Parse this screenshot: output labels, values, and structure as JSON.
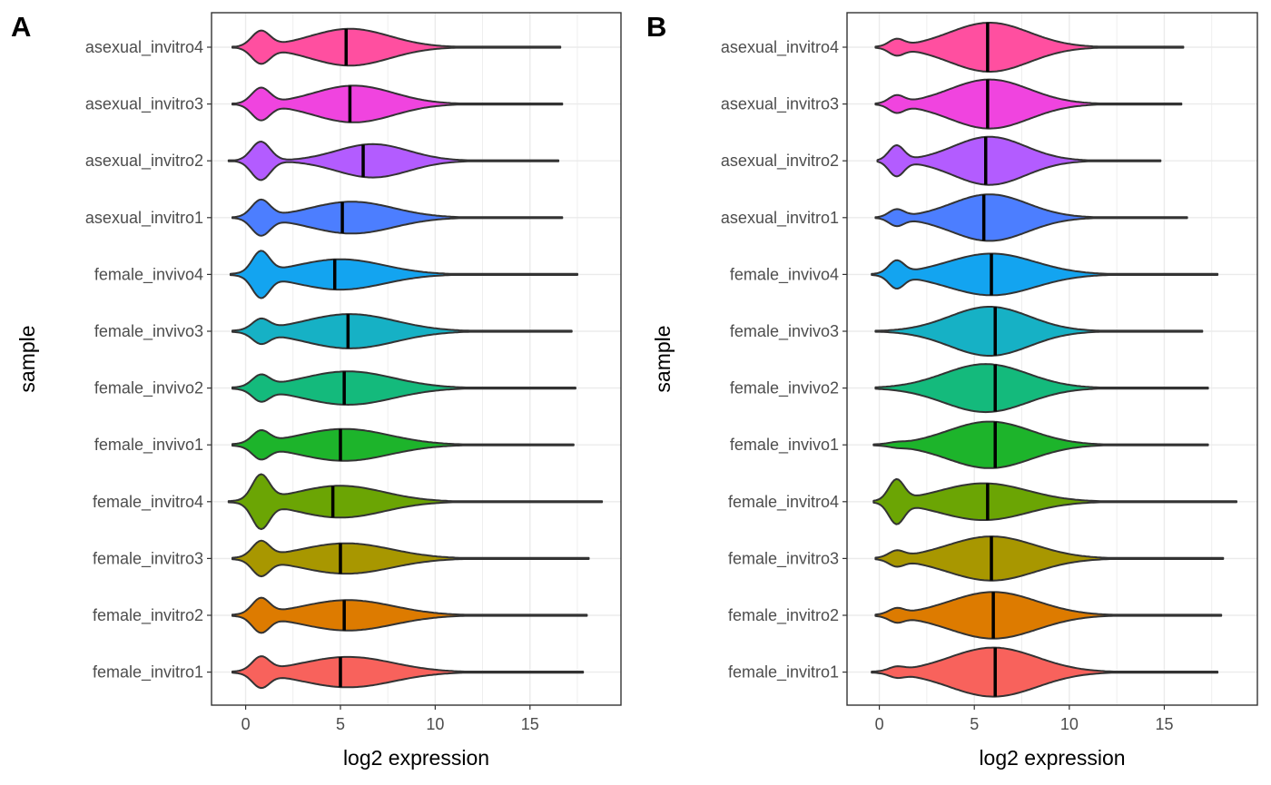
{
  "chart_data": [
    {
      "type": "violin",
      "panel_label": "A",
      "xlabel": "log2 expression",
      "ylabel": "sample",
      "xlim": [
        -1.8,
        19.8
      ],
      "xticks": [
        0,
        5,
        10,
        15
      ],
      "grid": true,
      "legend": "none",
      "categories": [
        "asexual_invitro4",
        "asexual_invitro3",
        "asexual_invitro2",
        "asexual_invitro1",
        "female_invivo4",
        "female_invivo3",
        "female_invivo2",
        "female_invivo1",
        "female_invitro4",
        "female_invitro3",
        "female_invitro2",
        "female_invitro1"
      ],
      "series": [
        {
          "category": "asexual_invitro4",
          "color": "#FF4FA0",
          "median": 5.3,
          "min": -0.7,
          "max": 16.6,
          "low_peak": {
            "x": 0.8,
            "w": 0.48,
            "h": 0.62
          },
          "main_peak": {
            "x": 5.5,
            "w": 2.1,
            "h": 0.75
          }
        },
        {
          "category": "asexual_invitro3",
          "color": "#F044DF",
          "median": 5.5,
          "min": -0.7,
          "max": 16.7,
          "low_peak": {
            "x": 0.8,
            "w": 0.48,
            "h": 0.62
          },
          "main_peak": {
            "x": 5.7,
            "w": 2.1,
            "h": 0.75
          }
        },
        {
          "category": "asexual_invitro2",
          "color": "#B35CFF",
          "median": 6.2,
          "min": -0.9,
          "max": 16.5,
          "low_peak": {
            "x": 0.8,
            "w": 0.5,
            "h": 0.78
          },
          "main_peak": {
            "x": 6.7,
            "w": 1.9,
            "h": 0.68
          }
        },
        {
          "category": "asexual_invitro1",
          "color": "#4C7EFF",
          "median": 5.1,
          "min": -0.7,
          "max": 16.7,
          "low_peak": {
            "x": 0.8,
            "w": 0.48,
            "h": 0.68
          },
          "main_peak": {
            "x": 5.6,
            "w": 2.2,
            "h": 0.65
          }
        },
        {
          "category": "female_invivo4",
          "color": "#13A4F0",
          "median": 4.7,
          "min": -0.8,
          "max": 17.5,
          "low_peak": {
            "x": 0.8,
            "w": 0.45,
            "h": 0.85
          },
          "main_peak": {
            "x": 5.0,
            "w": 2.3,
            "h": 0.62
          }
        },
        {
          "category": "female_invivo3",
          "color": "#16B1C5",
          "median": 5.4,
          "min": -0.7,
          "max": 17.2,
          "low_peak": {
            "x": 0.8,
            "w": 0.45,
            "h": 0.42
          },
          "main_peak": {
            "x": 5.5,
            "w": 2.4,
            "h": 0.7
          }
        },
        {
          "category": "female_invivo2",
          "color": "#14BA7C",
          "median": 5.2,
          "min": -0.7,
          "max": 17.4,
          "low_peak": {
            "x": 0.8,
            "w": 0.45,
            "h": 0.45
          },
          "main_peak": {
            "x": 5.4,
            "w": 2.4,
            "h": 0.68
          }
        },
        {
          "category": "female_invivo1",
          "color": "#1DB42B",
          "median": 5.0,
          "min": -0.7,
          "max": 17.3,
          "low_peak": {
            "x": 0.8,
            "w": 0.45,
            "h": 0.48
          },
          "main_peak": {
            "x": 5.2,
            "w": 2.4,
            "h": 0.65
          }
        },
        {
          "category": "female_invitro4",
          "color": "#6BA504",
          "median": 4.6,
          "min": -0.9,
          "max": 18.8,
          "low_peak": {
            "x": 0.8,
            "w": 0.45,
            "h": 1.0
          },
          "main_peak": {
            "x": 5.0,
            "w": 2.3,
            "h": 0.65
          }
        },
        {
          "category": "female_invitro3",
          "color": "#A89700",
          "median": 5.0,
          "min": -0.7,
          "max": 18.1,
          "low_peak": {
            "x": 0.8,
            "w": 0.45,
            "h": 0.62
          },
          "main_peak": {
            "x": 5.3,
            "w": 2.4,
            "h": 0.62
          }
        },
        {
          "category": "female_invitro2",
          "color": "#DD7B00",
          "median": 5.2,
          "min": -0.7,
          "max": 18.0,
          "low_peak": {
            "x": 0.8,
            "w": 0.45,
            "h": 0.62
          },
          "main_peak": {
            "x": 5.4,
            "w": 2.4,
            "h": 0.62
          }
        },
        {
          "category": "female_invitro1",
          "color": "#F8625C",
          "median": 5.0,
          "min": -0.7,
          "max": 17.8,
          "low_peak": {
            "x": 0.8,
            "w": 0.45,
            "h": 0.55
          },
          "main_peak": {
            "x": 5.4,
            "w": 2.4,
            "h": 0.62
          }
        }
      ]
    },
    {
      "type": "violin",
      "panel_label": "B",
      "xlabel": "log2 expression",
      "ylabel": "sample",
      "xlim": [
        -1.7,
        19.9
      ],
      "xticks": [
        0,
        5,
        10,
        15
      ],
      "grid": true,
      "legend": "none",
      "categories": [
        "asexual_invitro4",
        "asexual_invitro3",
        "asexual_invitro2",
        "asexual_invitro1",
        "female_invivo4",
        "female_invivo3",
        "female_invivo2",
        "female_invivo1",
        "female_invitro4",
        "female_invitro3",
        "female_invitro2",
        "female_invitro1"
      ],
      "series": [
        {
          "category": "asexual_invitro4",
          "color": "#FF4FA0",
          "median": 5.7,
          "min": -0.2,
          "max": 16.0,
          "low_peak": {
            "x": 0.9,
            "w": 0.4,
            "h": 0.28
          },
          "main_peak": {
            "x": 5.8,
            "w": 2.1,
            "h": 1.0
          }
        },
        {
          "category": "asexual_invitro3",
          "color": "#F044DF",
          "median": 5.7,
          "min": -0.2,
          "max": 15.9,
          "low_peak": {
            "x": 0.9,
            "w": 0.4,
            "h": 0.3
          },
          "main_peak": {
            "x": 5.8,
            "w": 2.1,
            "h": 1.0
          }
        },
        {
          "category": "asexual_invitro2",
          "color": "#B35CFF",
          "median": 5.6,
          "min": -0.1,
          "max": 14.8,
          "low_peak": {
            "x": 0.9,
            "w": 0.4,
            "h": 0.6
          },
          "main_peak": {
            "x": 5.8,
            "w": 1.9,
            "h": 0.98
          }
        },
        {
          "category": "asexual_invitro1",
          "color": "#4C7EFF",
          "median": 5.5,
          "min": -0.2,
          "max": 16.2,
          "low_peak": {
            "x": 0.9,
            "w": 0.4,
            "h": 0.3
          },
          "main_peak": {
            "x": 5.8,
            "w": 2.0,
            "h": 0.95
          }
        },
        {
          "category": "female_invivo4",
          "color": "#13A4F0",
          "median": 5.9,
          "min": -0.4,
          "max": 17.8,
          "low_peak": {
            "x": 0.9,
            "w": 0.4,
            "h": 0.5
          },
          "main_peak": {
            "x": 5.9,
            "w": 2.3,
            "h": 0.85
          }
        },
        {
          "category": "female_invivo3",
          "color": "#16B1C5",
          "median": 6.1,
          "min": -0.2,
          "max": 17.0,
          "low_peak": {
            "x": 0.9,
            "w": 0.4,
            "h": 0.0
          },
          "main_peak": {
            "x": 5.8,
            "w": 2.1,
            "h": 1.0
          }
        },
        {
          "category": "female_invivo2",
          "color": "#14BA7C",
          "median": 6.1,
          "min": -0.2,
          "max": 17.3,
          "low_peak": {
            "x": 0.9,
            "w": 0.4,
            "h": 0.0
          },
          "main_peak": {
            "x": 5.6,
            "w": 2.2,
            "h": 0.98
          }
        },
        {
          "category": "female_invivo1",
          "color": "#1DB42B",
          "median": 6.1,
          "min": -0.3,
          "max": 17.3,
          "low_peak": {
            "x": 0.9,
            "w": 0.4,
            "h": 0.05
          },
          "main_peak": {
            "x": 5.8,
            "w": 2.2,
            "h": 0.95
          }
        },
        {
          "category": "female_invitro4",
          "color": "#6BA504",
          "median": 5.7,
          "min": -0.3,
          "max": 18.8,
          "low_peak": {
            "x": 0.9,
            "w": 0.4,
            "h": 0.82
          },
          "main_peak": {
            "x": 5.5,
            "w": 2.3,
            "h": 0.75
          }
        },
        {
          "category": "female_invitro3",
          "color": "#A89700",
          "median": 5.9,
          "min": -0.2,
          "max": 18.1,
          "low_peak": {
            "x": 0.9,
            "w": 0.4,
            "h": 0.25
          },
          "main_peak": {
            "x": 5.9,
            "w": 2.3,
            "h": 0.9
          }
        },
        {
          "category": "female_invitro2",
          "color": "#DD7B00",
          "median": 6.0,
          "min": -0.2,
          "max": 18.0,
          "low_peak": {
            "x": 0.9,
            "w": 0.4,
            "h": 0.22
          },
          "main_peak": {
            "x": 6.0,
            "w": 2.3,
            "h": 0.95
          }
        },
        {
          "category": "female_invitro1",
          "color": "#F8625C",
          "median": 6.1,
          "min": -0.4,
          "max": 17.8,
          "low_peak": {
            "x": 0.9,
            "w": 0.4,
            "h": 0.15
          },
          "main_peak": {
            "x": 6.0,
            "w": 2.3,
            "h": 1.0
          }
        }
      ]
    }
  ]
}
